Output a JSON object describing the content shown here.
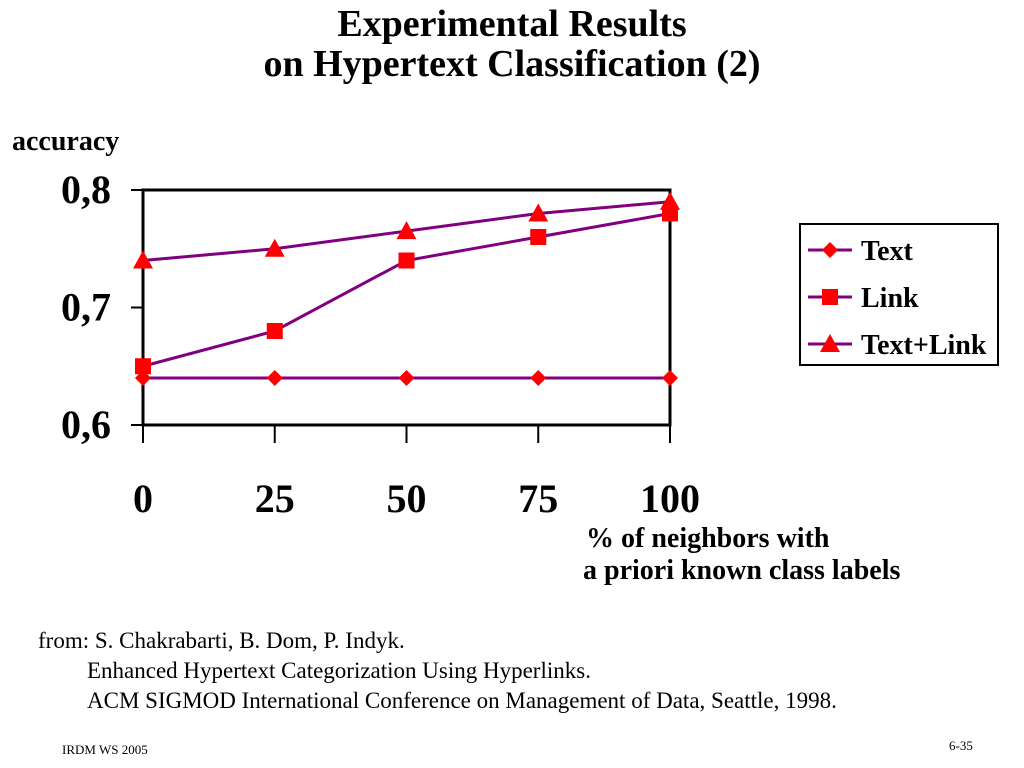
{
  "slide": {
    "title_line1": "Experimental Results",
    "title_line2": "on Hypertext Classification (2)",
    "x_axis_caption_line1": "% of neighbors with",
    "x_axis_caption_line2": "a priori known class labels",
    "citation": [
      "from: S. Chakrabarti, B. Dom, P. Indyk.",
      "Enhanced Hypertext Categorization Using Hyperlinks.",
      "ACM SIGMOD International Conference on Management of Data, Seattle, 1998."
    ],
    "footer_left": "IRDM  WS 2005",
    "footer_right": "6-35"
  },
  "chart_data": {
    "type": "line",
    "title": "",
    "ylabel": "accuracy",
    "xlabel": "% of neighbors with a priori known class labels",
    "x": [
      0,
      25,
      50,
      75,
      100
    ],
    "x_tick_labels": [
      "0",
      "25",
      "50",
      "75",
      "100"
    ],
    "ylim": [
      0.6,
      0.8
    ],
    "y_ticks": [
      0.6,
      0.7,
      0.8
    ],
    "y_tick_labels": [
      "0,6",
      "0,7",
      "0,8"
    ],
    "grid": false,
    "legend_position": "right",
    "line_color": "#800080",
    "marker_color": "#ff0000",
    "series": [
      {
        "name": "Text",
        "marker": "diamond",
        "values": [
          0.64,
          0.64,
          0.64,
          0.64,
          0.64
        ]
      },
      {
        "name": "Link",
        "marker": "square",
        "values": [
          0.65,
          0.68,
          0.74,
          0.76,
          0.78
        ]
      },
      {
        "name": "Text+Link",
        "marker": "triangle",
        "values": [
          0.74,
          0.75,
          0.765,
          0.78,
          0.79
        ]
      }
    ]
  }
}
